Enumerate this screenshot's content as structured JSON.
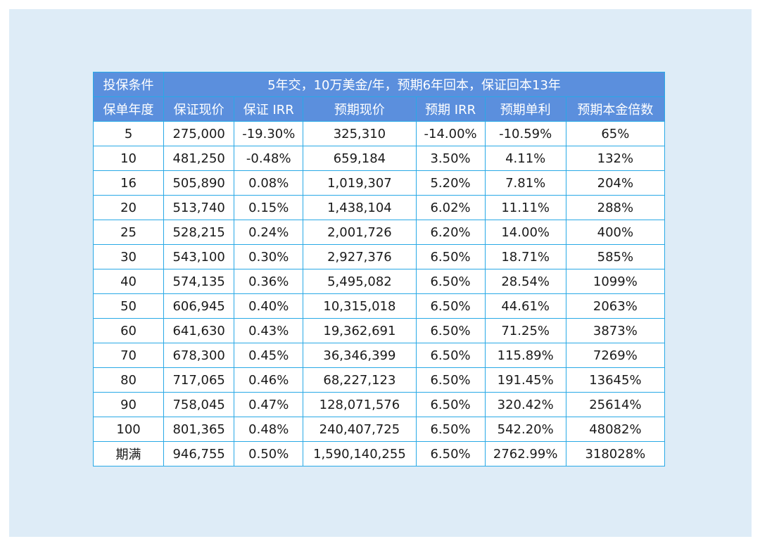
{
  "colors": {
    "header_bg": "#5b8fdd",
    "border": "#29a9e6",
    "panel_bg": "#deecf7",
    "header_text": "#ffffff"
  },
  "table": {
    "condition_label": "投保条件",
    "condition_text": "5年交，10万美金/年，预期6年回本，保证回本13年",
    "headers": [
      "保单年度",
      "保证现价",
      "保证 IRR",
      "预期现价",
      "预期 IRR",
      "预期单利",
      "预期本金倍数"
    ],
    "rows": [
      [
        "5",
        "275,000",
        "-19.30%",
        "325,310",
        "-14.00%",
        "-10.59%",
        "65%"
      ],
      [
        "10",
        "481,250",
        "-0.48%",
        "659,184",
        "3.50%",
        "4.11%",
        "132%"
      ],
      [
        "16",
        "505,890",
        "0.08%",
        "1,019,307",
        "5.20%",
        "7.81%",
        "204%"
      ],
      [
        "20",
        "513,740",
        "0.15%",
        "1,438,104",
        "6.02%",
        "11.11%",
        "288%"
      ],
      [
        "25",
        "528,215",
        "0.24%",
        "2,001,726",
        "6.20%",
        "14.00%",
        "400%"
      ],
      [
        "30",
        "543,100",
        "0.30%",
        "2,927,376",
        "6.50%",
        "18.71%",
        "585%"
      ],
      [
        "40",
        "574,135",
        "0.36%",
        "5,495,082",
        "6.50%",
        "28.54%",
        "1099%"
      ],
      [
        "50",
        "606,945",
        "0.40%",
        "10,315,018",
        "6.50%",
        "44.61%",
        "2063%"
      ],
      [
        "60",
        "641,630",
        "0.43%",
        "19,362,691",
        "6.50%",
        "71.25%",
        "3873%"
      ],
      [
        "70",
        "678,300",
        "0.45%",
        "36,346,399",
        "6.50%",
        "115.89%",
        "7269%"
      ],
      [
        "80",
        "717,065",
        "0.46%",
        "68,227,123",
        "6.50%",
        "191.45%",
        "13645%"
      ],
      [
        "90",
        "758,045",
        "0.47%",
        "128,071,576",
        "6.50%",
        "320.42%",
        "25614%"
      ],
      [
        "100",
        "801,365",
        "0.48%",
        "240,407,725",
        "6.50%",
        "542.20%",
        "48082%"
      ],
      [
        "期满",
        "946,755",
        "0.50%",
        "1,590,140,255",
        "6.50%",
        "2762.99%",
        "318028%"
      ]
    ]
  }
}
